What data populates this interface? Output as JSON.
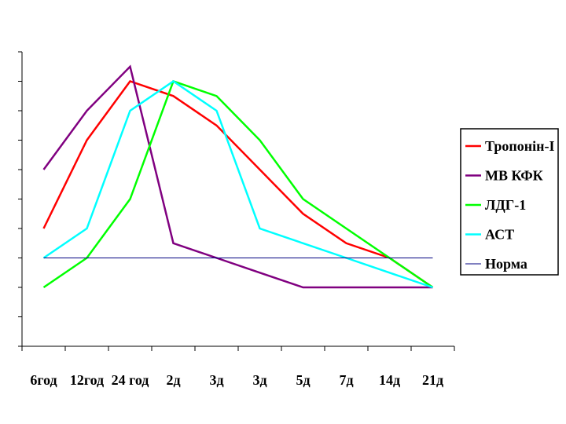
{
  "chart_data": {
    "type": "line",
    "categories": [
      "6год",
      "12год",
      "24 год",
      "2д",
      "3д",
      "3д",
      "5д",
      "7д",
      "14д",
      "21д"
    ],
    "ylim": [
      0,
      10
    ],
    "series": [
      {
        "name": "Тропонін-I",
        "color": "#ff0000",
        "values": [
          4,
          7,
          9,
          8.5,
          7.5,
          6,
          4.5,
          3.5,
          3,
          2
        ]
      },
      {
        "name": "МВ КФК",
        "color": "#800080",
        "values": [
          6,
          8,
          9.5,
          3.5,
          3,
          2.5,
          2,
          2,
          2,
          2
        ]
      },
      {
        "name": "ЛДГ-1",
        "color": "#00ff00",
        "values": [
          2,
          3,
          5,
          9,
          8.5,
          7,
          5,
          4,
          3,
          2
        ]
      },
      {
        "name": "АСТ",
        "color": "#00ffff",
        "values": [
          3,
          4,
          8,
          9,
          8,
          4,
          3.5,
          3,
          2.5,
          2
        ]
      },
      {
        "name": "Норма",
        "color": "#000080",
        "values": [
          3,
          3,
          3,
          3,
          3,
          3,
          3,
          3,
          3,
          3
        ]
      }
    ]
  }
}
